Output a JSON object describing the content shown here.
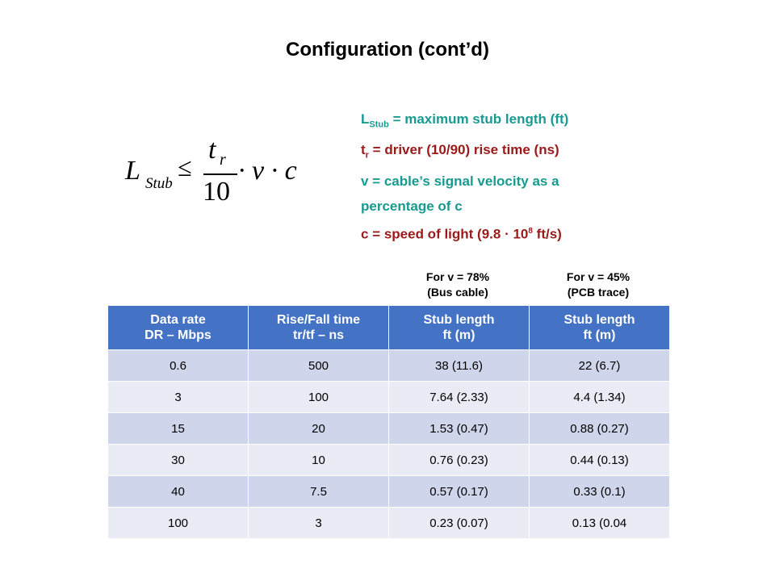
{
  "title": "Configuration (cont’d)",
  "formula": {
    "L": "L",
    "sub": "Stub",
    "le": "≤",
    "num": "t",
    "numsub": "r",
    "den": "10",
    "rest": "· v · c"
  },
  "definitions": [
    {
      "main": "L",
      "sub": "Stub",
      "text": " = maximum stub length (ft)",
      "color": "#179a90"
    },
    {
      "main": "t",
      "sub": "r",
      "text": " = driver (10/90) rise time (ns)",
      "color": "#9a1a1a"
    },
    {
      "text": "v = cable’s signal velocity as a",
      "color": "#179a90"
    },
    {
      "text": "percentage of c",
      "color": "#179a90"
    },
    {
      "text": "c = speed of light (9.8 · 10",
      "sup": "8",
      "text2": " ft/s)",
      "color": "#9a1a1a"
    }
  ],
  "column_notes": [
    {
      "line1": "For v = 78%",
      "line2": "(Bus cable)"
    },
    {
      "line1": "For v = 45%",
      "line2": "(PCB trace)"
    }
  ],
  "table": {
    "headers": [
      [
        "Data rate",
        "DR – Mbps"
      ],
      [
        "Rise/Fall time",
        "tr/tf – ns"
      ],
      [
        "Stub length",
        "ft (m)"
      ],
      [
        "Stub length",
        "ft (m)"
      ]
    ],
    "rows": [
      [
        "0.6",
        "500",
        "38 (11.6)",
        "22 (6.7)"
      ],
      [
        "3",
        "100",
        "7.64 (2.33)",
        "4.4 (1.34)"
      ],
      [
        "15",
        "20",
        "1.53 (0.47)",
        "0.88 (0.27)"
      ],
      [
        "30",
        "10",
        "0.76 (0.23)",
        "0.44 (0.13)"
      ],
      [
        "40",
        "7.5",
        "0.57 (0.17)",
        "0.33 (0.1)"
      ],
      [
        "100",
        "3",
        "0.23 (0.07)",
        "0.13 (0.04"
      ]
    ],
    "header_color": "#4472c4",
    "row_colors": [
      "#cfd5ea",
      "#e9ebf5"
    ]
  }
}
